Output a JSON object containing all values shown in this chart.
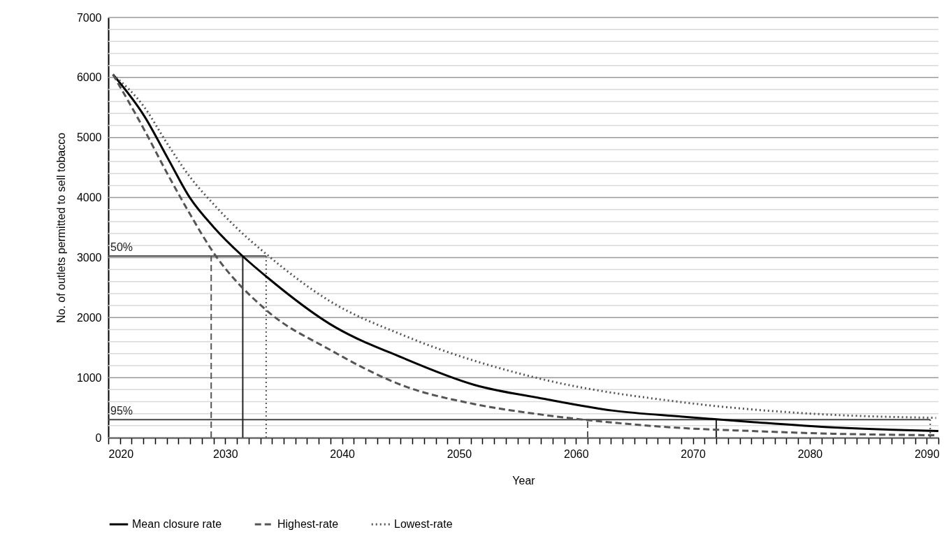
{
  "chart_data": {
    "type": "line",
    "xlabel": "Year",
    "ylabel": "No. of outlets permitted to sell tobacco",
    "xlim": [
      2020,
      2091
    ],
    "xticks": [
      2020,
      {
        "value": 2021,
        "label": null
      },
      {
        "value": 2022,
        "label": null
      },
      {
        "value": 2023,
        "label": null
      },
      {
        "value": 2024,
        "label": null
      },
      {
        "value": 2025,
        "label": null
      },
      {
        "value": 2026,
        "label": null
      },
      {
        "value": 2027,
        "label": null
      },
      {
        "value": 2028,
        "label": null
      },
      {
        "value": 2029,
        "label": null
      },
      2030,
      {
        "value": 2031,
        "label": null
      },
      {
        "value": 2032,
        "label": null
      },
      {
        "value": 2033,
        "label": null
      },
      {
        "value": 2034,
        "label": null
      },
      {
        "value": 2035,
        "label": null
      },
      {
        "value": 2036,
        "label": null
      },
      {
        "value": 2037,
        "label": null
      },
      {
        "value": 2038,
        "label": null
      },
      {
        "value": 2039,
        "label": null
      },
      2040,
      {
        "value": 2041,
        "label": null
      },
      {
        "value": 2042,
        "label": null
      },
      {
        "value": 2043,
        "label": null
      },
      {
        "value": 2044,
        "label": null
      },
      {
        "value": 2045,
        "label": null
      },
      {
        "value": 2046,
        "label": null
      },
      {
        "value": 2047,
        "label": null
      },
      {
        "value": 2048,
        "label": null
      },
      {
        "value": 2049,
        "label": null
      },
      2050,
      {
        "value": 2051,
        "label": null
      },
      {
        "value": 2052,
        "label": null
      },
      {
        "value": 2053,
        "label": null
      },
      {
        "value": 2054,
        "label": null
      },
      {
        "value": 2055,
        "label": null
      },
      {
        "value": 2056,
        "label": null
      },
      {
        "value": 2057,
        "label": null
      },
      {
        "value": 2058,
        "label": null
      },
      {
        "value": 2059,
        "label": null
      },
      2060,
      {
        "value": 2061,
        "label": null
      },
      {
        "value": 2062,
        "label": null
      },
      {
        "value": 2063,
        "label": null
      },
      {
        "value": 2064,
        "label": null
      },
      {
        "value": 2065,
        "label": null
      },
      {
        "value": 2066,
        "label": null
      },
      {
        "value": 2067,
        "label": null
      },
      {
        "value": 2068,
        "label": null
      },
      {
        "value": 2069,
        "label": null
      },
      2070,
      {
        "value": 2071,
        "label": null
      },
      {
        "value": 2072,
        "label": null
      },
      {
        "value": 2073,
        "label": null
      },
      {
        "value": 2074,
        "label": null
      },
      {
        "value": 2075,
        "label": null
      },
      {
        "value": 2076,
        "label": null
      },
      {
        "value": 2077,
        "label": null
      },
      {
        "value": 2078,
        "label": null
      },
      {
        "value": 2079,
        "label": null
      },
      2080,
      {
        "value": 2081,
        "label": null
      },
      {
        "value": 2082,
        "label": null
      },
      {
        "value": 2083,
        "label": null
      },
      {
        "value": 2084,
        "label": null
      },
      {
        "value": 2085,
        "label": null
      },
      {
        "value": 2086,
        "label": null
      },
      {
        "value": 2087,
        "label": null
      },
      {
        "value": 2088,
        "label": null
      },
      {
        "value": 2089,
        "label": null
      },
      2090,
      {
        "value": 2091,
        "label": null
      }
    ],
    "ylim": [
      0,
      7000
    ],
    "yticks": [
      0,
      {
        "value": 200,
        "label": null
      },
      {
        "value": 400,
        "label": null
      },
      {
        "value": 600,
        "label": null
      },
      {
        "value": 800,
        "label": null
      },
      1000,
      {
        "value": 1200,
        "label": null
      },
      {
        "value": 1400,
        "label": null
      },
      {
        "value": 1600,
        "label": null
      },
      {
        "value": 1800,
        "label": null
      },
      2000,
      {
        "value": 2200,
        "label": null
      },
      {
        "value": 2400,
        "label": null
      },
      {
        "value": 2600,
        "label": null
      },
      {
        "value": 2800,
        "label": null
      },
      3000,
      {
        "value": 3200,
        "label": null
      },
      {
        "value": 3400,
        "label": null
      },
      {
        "value": 3600,
        "label": null
      },
      {
        "value": 3800,
        "label": null
      },
      4000,
      {
        "value": 4200,
        "label": null
      },
      {
        "value": 4400,
        "label": null
      },
      {
        "value": 4600,
        "label": null
      },
      {
        "value": 4800,
        "label": null
      },
      5000,
      {
        "value": 5200,
        "label": null
      },
      {
        "value": 5400,
        "label": null
      },
      {
        "value": 5600,
        "label": null
      },
      {
        "value": 5800,
        "label": null
      },
      6000,
      {
        "value": 6200,
        "label": null
      },
      {
        "value": 6400,
        "label": null
      },
      {
        "value": 6600,
        "label": null
      },
      {
        "value": 6800,
        "label": null
      },
      7000
    ],
    "grid": "y",
    "legend": "bottom",
    "series": [
      {
        "name": "Mean closure rate",
        "color": "#000000",
        "line_style": "solid",
        "x": [
          2020.4,
          2023.1,
          2025.1,
          2027.0,
          2029.0,
          2031.4,
          2033.6,
          2038.9,
          2045.3,
          2051.3,
          2057.2,
          2063.2,
          2069.1,
          2075.1,
          2081.0,
          2091.0
        ],
        "values": [
          6050,
          5350,
          4650,
          3990,
          3510,
          3040,
          2670,
          1900,
          1320,
          880,
          650,
          450,
          350,
          260,
          180,
          110
        ]
      },
      {
        "name": "Highest-rate",
        "color": "#555555",
        "line_style": "dashed",
        "x": [
          2020.4,
          2023.1,
          2025.1,
          2027.0,
          2028.8,
          2033.6,
          2038.9,
          2045.3,
          2051.3,
          2057.2,
          2063.2,
          2069.1,
          2075.1,
          2081.0,
          2090.8
        ],
        "values": [
          6050,
          5120,
          4380,
          3720,
          3140,
          2110,
          1470,
          860,
          560,
          380,
          250,
          160,
          110,
          70,
          40
        ]
      },
      {
        "name": "Lowest-rate",
        "color": "#555555",
        "line_style": "dotted",
        "x": [
          2020.4,
          2023.1,
          2025.1,
          2027.0,
          2029.0,
          2031.0,
          2033.5,
          2038.9,
          2045.3,
          2057.2,
          2069.1,
          2081.0,
          2090.8
        ],
        "values": [
          6050,
          5500,
          4880,
          4340,
          3890,
          3490,
          3060,
          2280,
          1700,
          970,
          590,
          390,
          330
        ]
      },
      {
        "type": "line",
        "color": "#444444",
        "line_style": "solid",
        "x": [
          2020,
          2033.5
        ],
        "values": [
          3025,
          3025
        ]
      },
      {
        "type": "line",
        "color": "#444444",
        "line_style": "solid",
        "x": [
          2020,
          2090.3
        ],
        "values": [
          300,
          300
        ]
      },
      {
        "type": "line",
        "color": "#555555",
        "line_style": "dashed",
        "x": [
          2028.8,
          2028.8
        ],
        "values": [
          0,
          3025
        ]
      },
      {
        "type": "line",
        "color": "#222222",
        "line_style": "solid",
        "x": [
          2031.5,
          2031.5
        ],
        "values": [
          0,
          3025
        ]
      },
      {
        "type": "line",
        "color": "#555555",
        "line_style": "dotted",
        "x": [
          2033.5,
          2033.5
        ],
        "values": [
          0,
          3025
        ]
      },
      {
        "type": "line",
        "color": "#555555",
        "line_style": "dashed",
        "x": [
          2061.0,
          2061.0
        ],
        "values": [
          0,
          300
        ]
      },
      {
        "type": "line",
        "color": "#222222",
        "line_style": "solid",
        "x": [
          2072.0,
          2072.0
        ],
        "values": [
          0,
          300
        ]
      },
      {
        "type": "line",
        "color": "#555555",
        "line_style": "dotted",
        "x": [
          2090.3,
          2090.3
        ],
        "values": [
          0,
          300
        ]
      }
    ],
    "annotations": [
      {
        "text": "50%",
        "x": 2020,
        "y": 3025
      },
      {
        "text": "95%",
        "x": 2020,
        "y": 300
      }
    ]
  }
}
